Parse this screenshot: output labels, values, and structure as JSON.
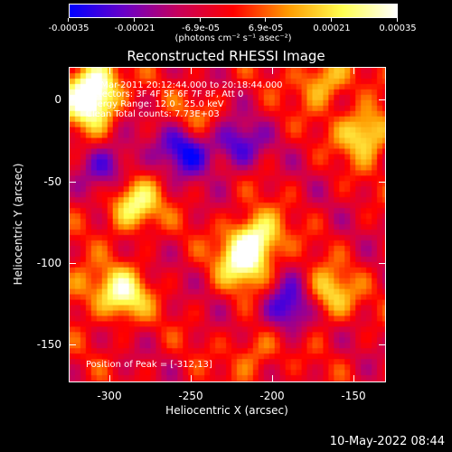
{
  "colorbar": {
    "tick_labels": [
      "-0.00035",
      "-0.00021",
      "-6.9e-05",
      "6.9e-05",
      "0.00021",
      "0.00035"
    ],
    "tick_values": [
      -0.00035,
      -0.00021,
      -6.9e-05,
      6.9e-05,
      0.00021,
      0.00035
    ],
    "unit_label": "(photons cm⁻² s⁻¹ asec⁻²)",
    "range": [
      -0.00035,
      0.00035
    ],
    "colormap": [
      "#0000ff",
      "#6a00c8",
      "#c8005a",
      "#ff0000",
      "#ff9a00",
      "#ffff50",
      "#ffffff"
    ]
  },
  "title": "Reconstructed RHESSI Image",
  "info": {
    "time_range": "26-Mar-2011 20:12:44.000 to 20:18:44.000",
    "detectors": "Detectors: 3F 4F 5F 6F 7F 8F, Att 0",
    "energy": "Energy Range: 12.0 - 25.0 keV",
    "clean": "Clean     Total counts: 7.73E+03",
    "peak": "Position of Peak = [-312,13]"
  },
  "chart_data": {
    "type": "heatmap",
    "title": "Reconstructed RHESSI Image",
    "xlabel": "Heliocentric X (arcsec)",
    "ylabel": "Heliocentric Y (arcsec)",
    "xlim": [
      -325,
      -130
    ],
    "ylim": [
      -173,
      20
    ],
    "x_ticks": [
      -300,
      -250,
      -200,
      -150
    ],
    "y_ticks": [
      0,
      -50,
      -100,
      -150
    ],
    "x_tick_labels": [
      "-300",
      "-250",
      "-200",
      "-150"
    ],
    "y_tick_labels": [
      "0",
      "-50",
      "-100",
      "-150"
    ],
    "value_range": [
      -0.00035,
      0.00035
    ],
    "peak_position": [
      -312,
      13
    ],
    "sources": [
      {
        "x": -310,
        "y": 10,
        "value": 0.00035
      },
      {
        "x": -312,
        "y": -3,
        "value": 0.0003
      },
      {
        "x": -286,
        "y": -65,
        "value": 0.00032
      },
      {
        "x": -210,
        "y": -85,
        "value": 0.00035
      },
      {
        "x": -218,
        "y": -100,
        "value": 0.0003
      },
      {
        "x": -293,
        "y": -120,
        "value": 0.00033
      },
      {
        "x": -165,
        "y": -120,
        "value": 0.00026
      },
      {
        "x": -142,
        "y": -20,
        "value": 0.00032
      },
      {
        "x": -168,
        "y": 12,
        "value": 0.00024
      },
      {
        "x": -210,
        "y": -155,
        "value": 0.00015
      },
      {
        "x": -320,
        "y": -115,
        "value": 0.00014
      },
      {
        "x": -245,
        "y": -10,
        "value": 0.00012
      },
      {
        "x": -190,
        "y": -128,
        "value": -0.0003
      },
      {
        "x": -253,
        "y": -30,
        "value": -0.00028
      },
      {
        "x": -222,
        "y": -28,
        "value": -0.00024
      },
      {
        "x": -300,
        "y": -40,
        "value": -0.00022
      }
    ]
  },
  "datestamp": "10-May-2022 08:44"
}
